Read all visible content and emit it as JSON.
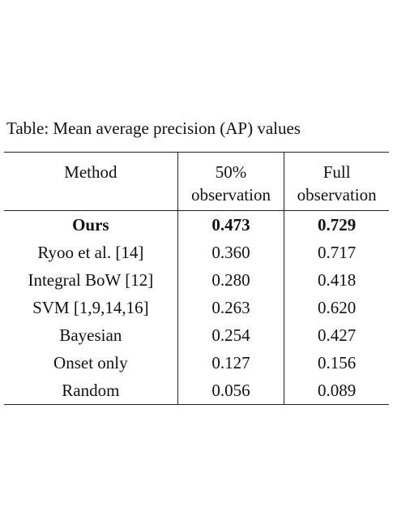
{
  "caption": "Table: Mean average precision (AP) values",
  "header": {
    "method": "Method",
    "col2_line1": "50%",
    "col2_line2": "observation",
    "col3_line1": "Full",
    "col3_line2": "observation"
  },
  "rows": [
    {
      "method": "Ours",
      "half": "0.473",
      "full": "0.729",
      "bold": true
    },
    {
      "method": "Ryoo et al. [14]",
      "half": "0.360",
      "full": "0.717"
    },
    {
      "method": "Integral BoW [12]",
      "half": "0.280",
      "full": "0.418"
    },
    {
      "method": "SVM [1,9,14,16]",
      "half": "0.263",
      "full": "0.620"
    },
    {
      "method": "Bayesian",
      "half": "0.254",
      "full": "0.427"
    },
    {
      "method": "Onset only",
      "half": "0.127",
      "full": "0.156"
    },
    {
      "method": "Random",
      "half": "0.056",
      "full": "0.089"
    }
  ]
}
